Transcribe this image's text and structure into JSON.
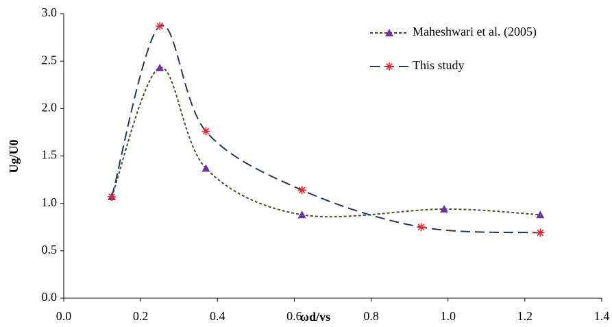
{
  "chart_data": {
    "type": "line",
    "xlabel": "ωd/vs",
    "ylabel": "Ug/U0",
    "xlim": [
      0,
      1.4
    ],
    "xticks": [
      {
        "value": 0,
        "label": "0.0"
      },
      0.2,
      0.4,
      0.6,
      0.8,
      {
        "value": 1,
        "label": "1.0"
      },
      1.2,
      1.4
    ],
    "ylim": [
      0,
      3
    ],
    "yticks": [
      {
        "value": 0,
        "label": "0.0"
      },
      0.5,
      {
        "value": 1,
        "label": "1.0"
      },
      1.5,
      {
        "value": 2,
        "label": "2.0"
      },
      2.5,
      {
        "value": 3,
        "label": "3.0"
      }
    ],
    "legend": "upper right",
    "series": [
      {
        "name": "Maheshwari et al. (2005)",
        "color": "#375623",
        "marker_color": "#7030a0",
        "marker": "triangle",
        "dash": "4,3",
        "x": [
          0.125,
          0.25,
          0.37,
          0.62,
          0.99,
          1.24
        ],
        "values": [
          1.07,
          2.43,
          1.37,
          0.88,
          0.94,
          0.88
        ]
      },
      {
        "name": "This study",
        "color": "#1f3864",
        "marker_color": "#e8202a",
        "marker": "asterisk",
        "dash": "14,7",
        "x": [
          0.125,
          0.25,
          0.37,
          0.62,
          0.93,
          1.24
        ],
        "values": [
          1.07,
          2.87,
          1.76,
          1.14,
          0.75,
          0.69
        ]
      }
    ]
  }
}
